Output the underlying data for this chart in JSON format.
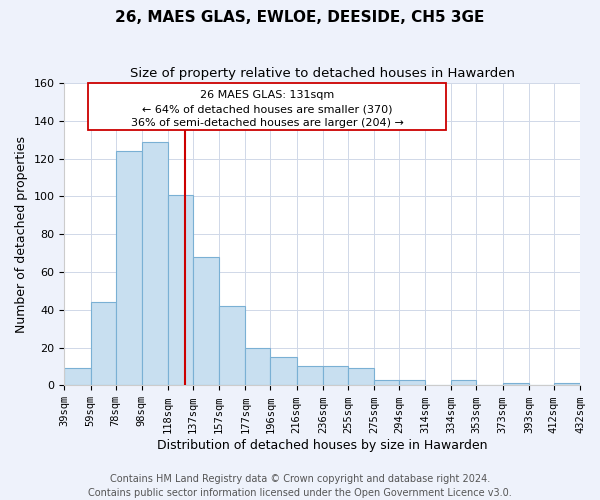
{
  "title": "26, MAES GLAS, EWLOE, DEESIDE, CH5 3GE",
  "subtitle": "Size of property relative to detached houses in Hawarden",
  "xlabel": "Distribution of detached houses by size in Hawarden",
  "ylabel": "Number of detached properties",
  "bar_left_edges": [
    39,
    59,
    78,
    98,
    118,
    137,
    157,
    177,
    196,
    216,
    236,
    255,
    275,
    294,
    314,
    334,
    353,
    373,
    393,
    412
  ],
  "bar_widths": [
    20,
    19,
    20,
    20,
    19,
    20,
    20,
    19,
    20,
    20,
    19,
    20,
    19,
    20,
    20,
    19,
    20,
    20,
    19,
    20
  ],
  "bar_heights": [
    9,
    44,
    124,
    129,
    101,
    68,
    42,
    20,
    15,
    10,
    10,
    9,
    3,
    3,
    0,
    3,
    0,
    1,
    0,
    1
  ],
  "bar_color": "#c8dff0",
  "bar_edge_color": "#7ab0d4",
  "property_line_x": 131,
  "property_line_color": "#cc0000",
  "annotation_line1": "26 MAES GLAS: 131sqm",
  "annotation_line2": "← 64% of detached houses are smaller (370)",
  "annotation_line3": "36% of semi-detached houses are larger (204) →",
  "ylim": [
    0,
    160
  ],
  "xlim": [
    39,
    432
  ],
  "tick_labels": [
    "39sqm",
    "59sqm",
    "78sqm",
    "98sqm",
    "118sqm",
    "137sqm",
    "157sqm",
    "177sqm",
    "196sqm",
    "216sqm",
    "236sqm",
    "255sqm",
    "275sqm",
    "294sqm",
    "314sqm",
    "334sqm",
    "353sqm",
    "373sqm",
    "393sqm",
    "412sqm",
    "432sqm"
  ],
  "tick_positions": [
    39,
    59,
    78,
    98,
    118,
    137,
    157,
    177,
    196,
    216,
    236,
    255,
    275,
    294,
    314,
    334,
    353,
    373,
    393,
    412,
    432
  ],
  "footer_line1": "Contains HM Land Registry data © Crown copyright and database right 2024.",
  "footer_line2": "Contains public sector information licensed under the Open Government Licence v3.0.",
  "background_color": "#eef2fb",
  "plot_bg_color": "#ffffff",
  "title_fontsize": 11,
  "subtitle_fontsize": 9.5,
  "axis_label_fontsize": 9,
  "tick_fontsize": 7.5,
  "footer_fontsize": 7,
  "annot_fontsize": 8
}
